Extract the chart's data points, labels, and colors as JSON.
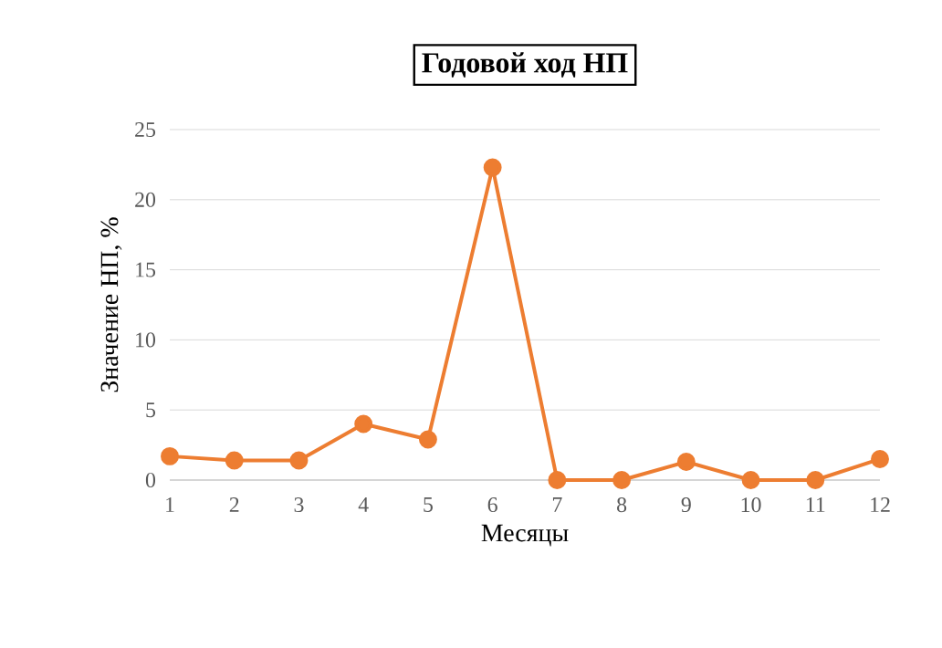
{
  "chart_data": {
    "type": "line",
    "title": "Годовой ход НП",
    "xlabel": "Месяцы",
    "ylabel": "Значение НП, %",
    "categories": [
      "1",
      "2",
      "3",
      "4",
      "5",
      "6",
      "7",
      "8",
      "9",
      "10",
      "11",
      "12"
    ],
    "series": [
      {
        "color": "#ed7d31",
        "values": [
          1.7,
          1.4,
          1.4,
          4.0,
          2.9,
          22.3,
          0,
          0,
          1.3,
          0,
          0,
          1.5
        ]
      }
    ],
    "ylim": [
      0,
      25
    ],
    "yticks": [
      0,
      5,
      10,
      15,
      20,
      25
    ],
    "grid": "y",
    "marker": "circle",
    "line_style": "solid"
  }
}
